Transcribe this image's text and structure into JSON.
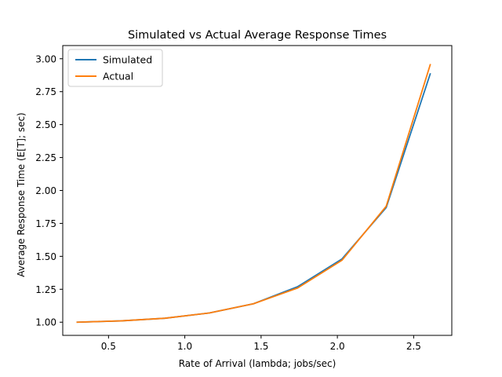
{
  "chart_data": {
    "type": "line",
    "title": "Simulated vs Actual Average Response Times",
    "xlabel": "Rate of Arrival (lambda; jobs/sec)",
    "ylabel": "Average Response Time (E[T]; sec)",
    "xlim": [
      0.2,
      2.75
    ],
    "ylim": [
      0.9,
      3.1
    ],
    "x_ticks": [
      {
        "value": 0.5,
        "label": "0.5"
      },
      {
        "value": 1.0,
        "label": "1.0"
      },
      {
        "value": 1.5,
        "label": "1.5"
      },
      {
        "value": 2.0,
        "label": "2.0"
      },
      {
        "value": 2.5,
        "label": "2.5"
      }
    ],
    "y_ticks": [
      {
        "value": 1.0,
        "label": "1.00"
      },
      {
        "value": 1.25,
        "label": "1.25"
      },
      {
        "value": 1.5,
        "label": "1.50"
      },
      {
        "value": 1.75,
        "label": "1.75"
      },
      {
        "value": 2.0,
        "label": "2.00"
      },
      {
        "value": 2.25,
        "label": "2.25"
      },
      {
        "value": 2.5,
        "label": "2.50"
      },
      {
        "value": 2.75,
        "label": "2.75"
      },
      {
        "value": 3.0,
        "label": "3.00"
      }
    ],
    "grid": false,
    "legend_position": "top-left",
    "x": [
      0.29,
      0.58,
      0.87,
      1.16,
      1.45,
      1.74,
      2.03,
      2.32,
      2.61
    ],
    "series": [
      {
        "name": "Simulated",
        "color": "#1f77b4",
        "values": [
          1.0,
          1.01,
          1.03,
          1.07,
          1.14,
          1.27,
          1.48,
          1.87,
          2.89
        ]
      },
      {
        "name": "Actual",
        "color": "#ff7f0e",
        "values": [
          1.0,
          1.01,
          1.03,
          1.07,
          1.14,
          1.26,
          1.47,
          1.88,
          2.96
        ]
      }
    ]
  }
}
